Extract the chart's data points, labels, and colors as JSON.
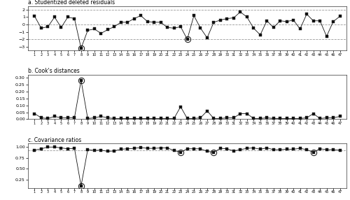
{
  "title_a": "a. Studentized deleted residuals",
  "title_b": "b. Cook's distances",
  "title_c": "c. Covariance ratios",
  "x": [
    1,
    2,
    3,
    4,
    5,
    6,
    7,
    8,
    9,
    10,
    11,
    12,
    13,
    14,
    15,
    16,
    17,
    18,
    19,
    20,
    21,
    22,
    23,
    24,
    25,
    26,
    27,
    28,
    29,
    30,
    31,
    32,
    33,
    34,
    35,
    36,
    37,
    38,
    39,
    40,
    41,
    42,
    43,
    44,
    45,
    46,
    47
  ],
  "sdr": [
    1.1,
    -0.5,
    -0.3,
    1.0,
    -0.4,
    1.0,
    0.8,
    -3.2,
    -0.8,
    -0.6,
    -1.2,
    -0.7,
    -0.3,
    0.3,
    0.3,
    0.8,
    1.2,
    0.4,
    0.3,
    0.3,
    -0.4,
    -0.5,
    -0.3,
    -2.0,
    1.2,
    -0.5,
    -1.8,
    0.3,
    0.6,
    0.8,
    0.9,
    1.7,
    1.0,
    -0.5,
    -1.4,
    0.5,
    -0.4,
    0.5,
    0.4,
    0.6,
    -0.6,
    1.4,
    0.5,
    0.5,
    -1.6,
    0.4,
    1.1
  ],
  "sdr_outliers": [
    8,
    24
  ],
  "sdr_hlines": [
    0,
    2,
    -2
  ],
  "sdr_ylim": [
    -3.5,
    2.5
  ],
  "sdr_yticks": [
    -3,
    -2,
    -1,
    0,
    1,
    2
  ],
  "cook": [
    0.04,
    0.01,
    0.005,
    0.02,
    0.01,
    0.01,
    0.01,
    0.28,
    0.005,
    0.01,
    0.02,
    0.01,
    0.005,
    0.005,
    0.005,
    0.005,
    0.005,
    0.005,
    0.005,
    0.005,
    0.005,
    0.005,
    0.09,
    0.005,
    0.005,
    0.01,
    0.06,
    0.005,
    0.005,
    0.01,
    0.01,
    0.04,
    0.04,
    0.005,
    0.005,
    0.01,
    0.005,
    0.005,
    0.005,
    0.005,
    0.005,
    0.01,
    0.04,
    0.005,
    0.01,
    0.01,
    0.02
  ],
  "cook_outliers": [
    8
  ],
  "cook_ylim": [
    0.0,
    0.32
  ],
  "cook_yticks": [
    0.0,
    0.05,
    0.1,
    0.15,
    0.2,
    0.25,
    0.3
  ],
  "cvr": [
    0.93,
    0.96,
    1.0,
    1.0,
    0.98,
    0.96,
    0.97,
    0.1,
    0.94,
    0.92,
    0.93,
    0.9,
    0.91,
    0.95,
    0.96,
    0.97,
    0.99,
    0.97,
    0.97,
    0.98,
    0.98,
    0.92,
    0.88,
    0.96,
    0.96,
    0.96,
    0.9,
    0.88,
    0.97,
    0.96,
    0.91,
    0.94,
    0.97,
    0.98,
    0.95,
    0.98,
    0.94,
    0.94,
    0.95,
    0.95,
    0.97,
    0.94,
    0.88,
    0.96,
    0.94,
    0.94,
    0.93
  ],
  "cvr_outliers": [
    8,
    23,
    28,
    43
  ],
  "cvr_hline": 0.925,
  "cvr_ylim": [
    0.05,
    1.08
  ],
  "cvr_yticks": [
    0.25,
    0.5,
    0.75,
    1.0
  ],
  "line_color": "#111111",
  "marker_style": "s",
  "marker_size": 2.2,
  "circle_color": "#111111",
  "bg_color": "#ffffff",
  "hline_color": "#999999",
  "spine_color": "#333333"
}
